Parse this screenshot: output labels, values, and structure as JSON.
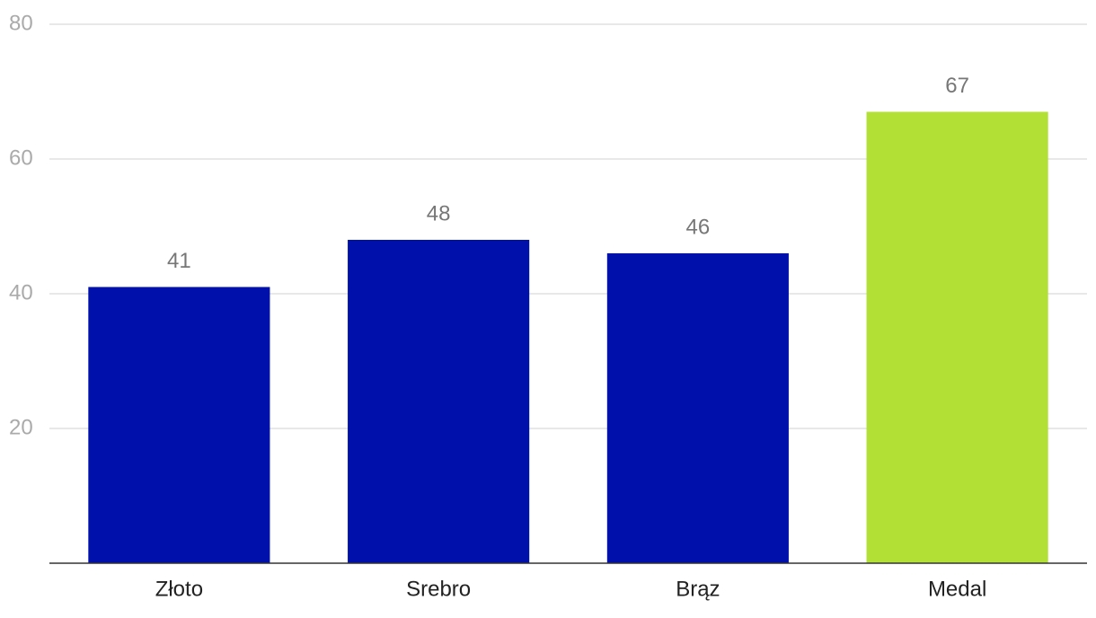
{
  "chart_data": {
    "type": "bar",
    "categories": [
      "Złoto",
      "Srebro",
      "Brąz",
      "Medal"
    ],
    "values": [
      41,
      48,
      46,
      67
    ],
    "colors": [
      "#0010aa",
      "#0010aa",
      "#0010aa",
      "#b2e035"
    ],
    "ylim": [
      0,
      80
    ],
    "yticks": [
      20,
      40,
      60,
      80
    ],
    "grid": true
  }
}
